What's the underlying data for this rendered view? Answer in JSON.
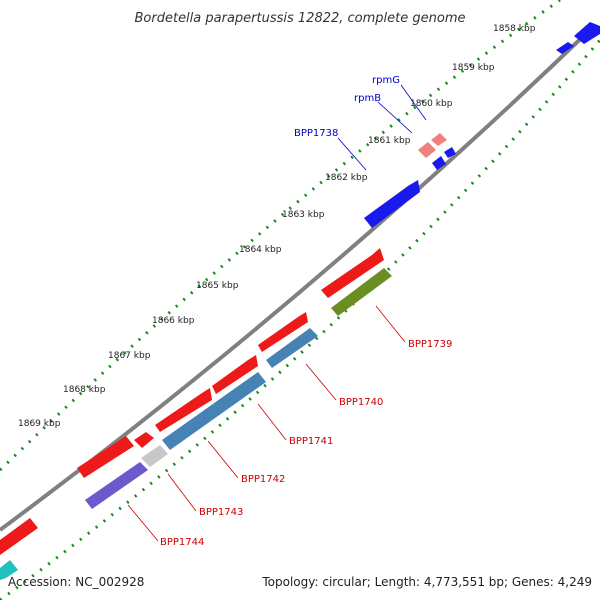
{
  "title": "Bordetella parapertussis 12822, complete genome",
  "footer": {
    "accession": "Accession: NC_002928",
    "summary": "Topology: circular; Length: 4,773,551 bp; Genes: 4,249"
  },
  "colors": {
    "backbone": "#808080",
    "tick_dots": "#1a8a1a",
    "label_red": "#cc0000",
    "label_blue": "#0000cc"
  },
  "kbp_labels": [
    "1858 kbp",
    "1859 kbp",
    "1860 kbp",
    "1861 kbp",
    "1862 kbp",
    "1863 kbp",
    "1864 kbp",
    "1865 kbp",
    "1866 kbp",
    "1867 kbp",
    "1868 kbp",
    "1869 kbp"
  ],
  "gene_labels": [
    "rpmG",
    "rpmB",
    "BPP1738",
    "BPP1739",
    "BPP1740",
    "BPP1741",
    "BPP1742",
    "BPP1743",
    "BPP1744"
  ]
}
